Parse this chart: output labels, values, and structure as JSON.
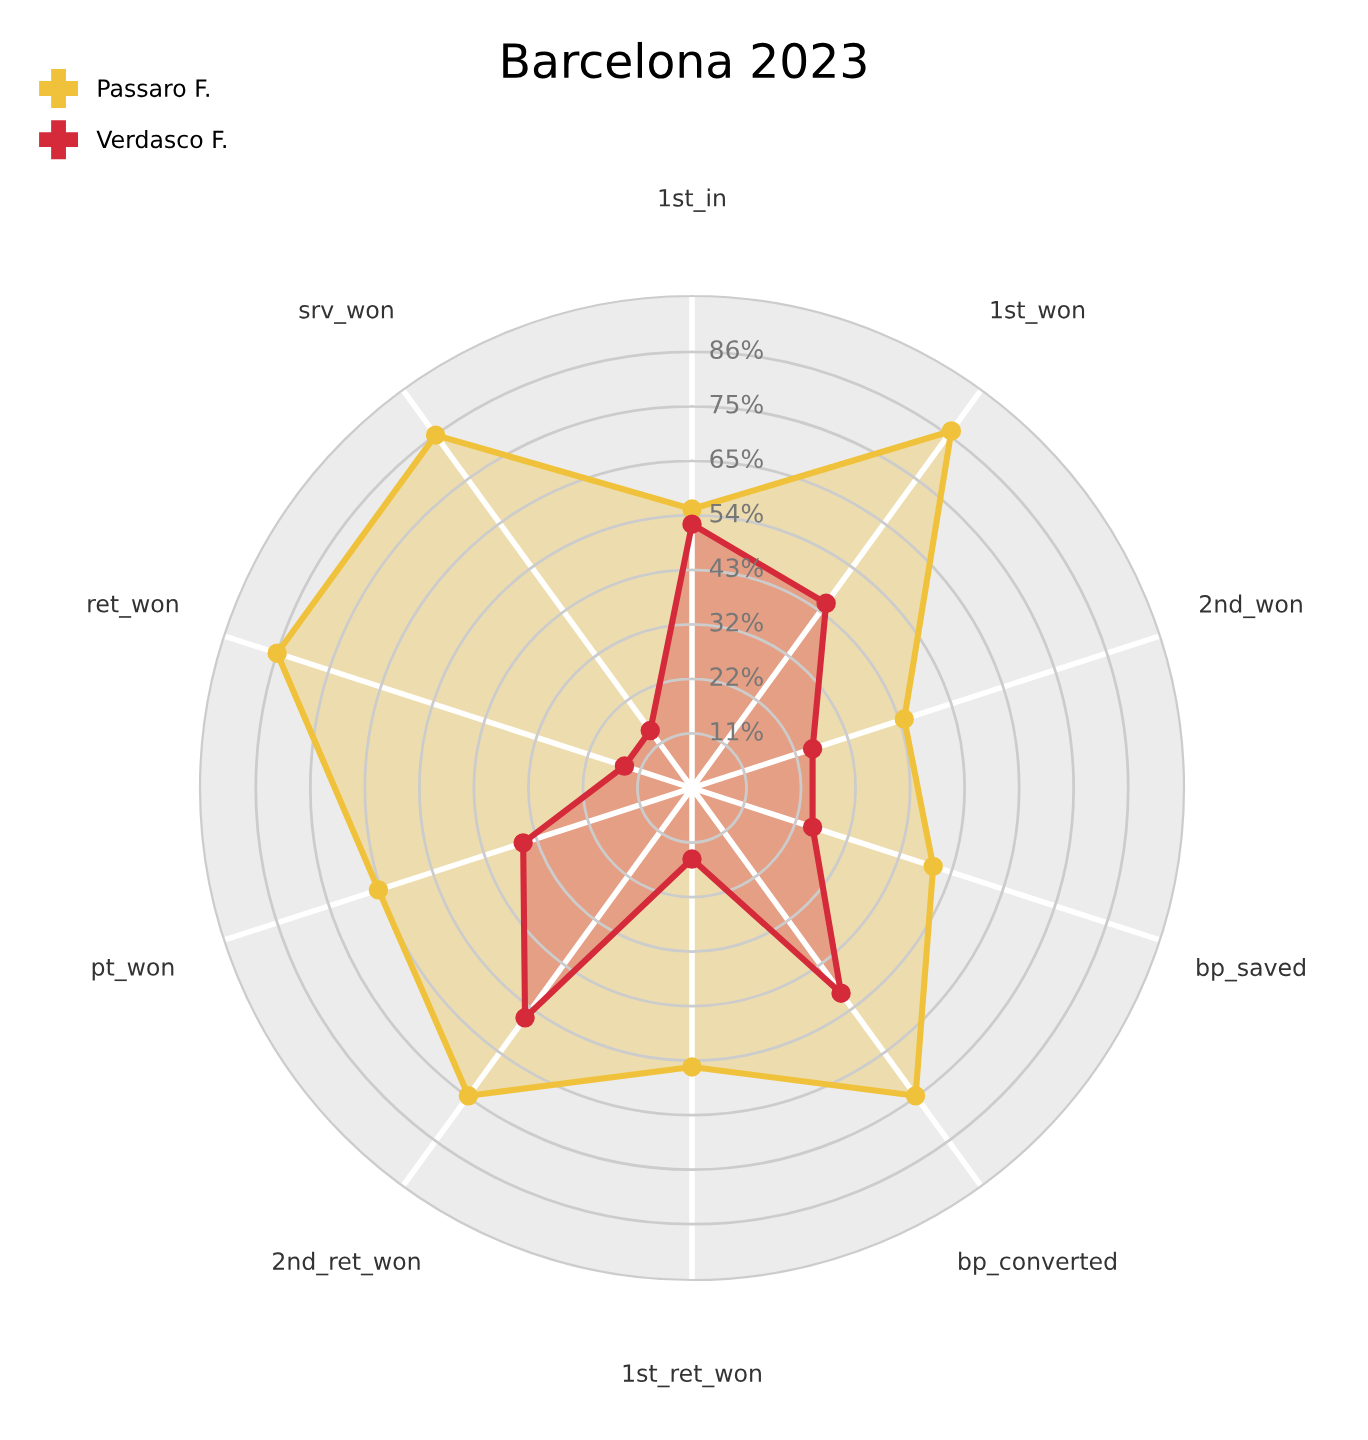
{
  "chart_data": {
    "type": "radar",
    "title": "Barcelona 2023",
    "categories": [
      "1st_in",
      "1st_won",
      "2nd_won",
      "bp_saved",
      "bp_converted",
      "1st_ret_won",
      "2nd_ret_won",
      "pt_won",
      "ret_won",
      "srv_won"
    ],
    "series": [
      {
        "name": "Passaro F.",
        "color": "#f0c23b",
        "values": [
          55,
          87,
          44,
          50,
          75,
          55,
          75,
          65,
          86,
          86
        ]
      },
      {
        "name": "Verdasco F.",
        "color": "#d42a3a",
        "values": [
          52,
          45,
          25,
          25,
          50,
          14,
          56,
          35,
          14,
          14
        ]
      }
    ],
    "ylim": [
      0,
      97
    ],
    "yticks": [
      {
        "value": 10.75,
        "label": "11%"
      },
      {
        "value": 21.5,
        "label": "22%"
      },
      {
        "value": 32.25,
        "label": "32%"
      },
      {
        "value": 43,
        "label": "43%"
      },
      {
        "value": 53.75,
        "label": "54%"
      },
      {
        "value": 64.5,
        "label": "65%"
      },
      {
        "value": 75.25,
        "label": "75%"
      },
      {
        "value": 86,
        "label": "86%"
      }
    ],
    "grid": true,
    "legend": "top left",
    "marker": "circle",
    "line_style": "solid"
  }
}
